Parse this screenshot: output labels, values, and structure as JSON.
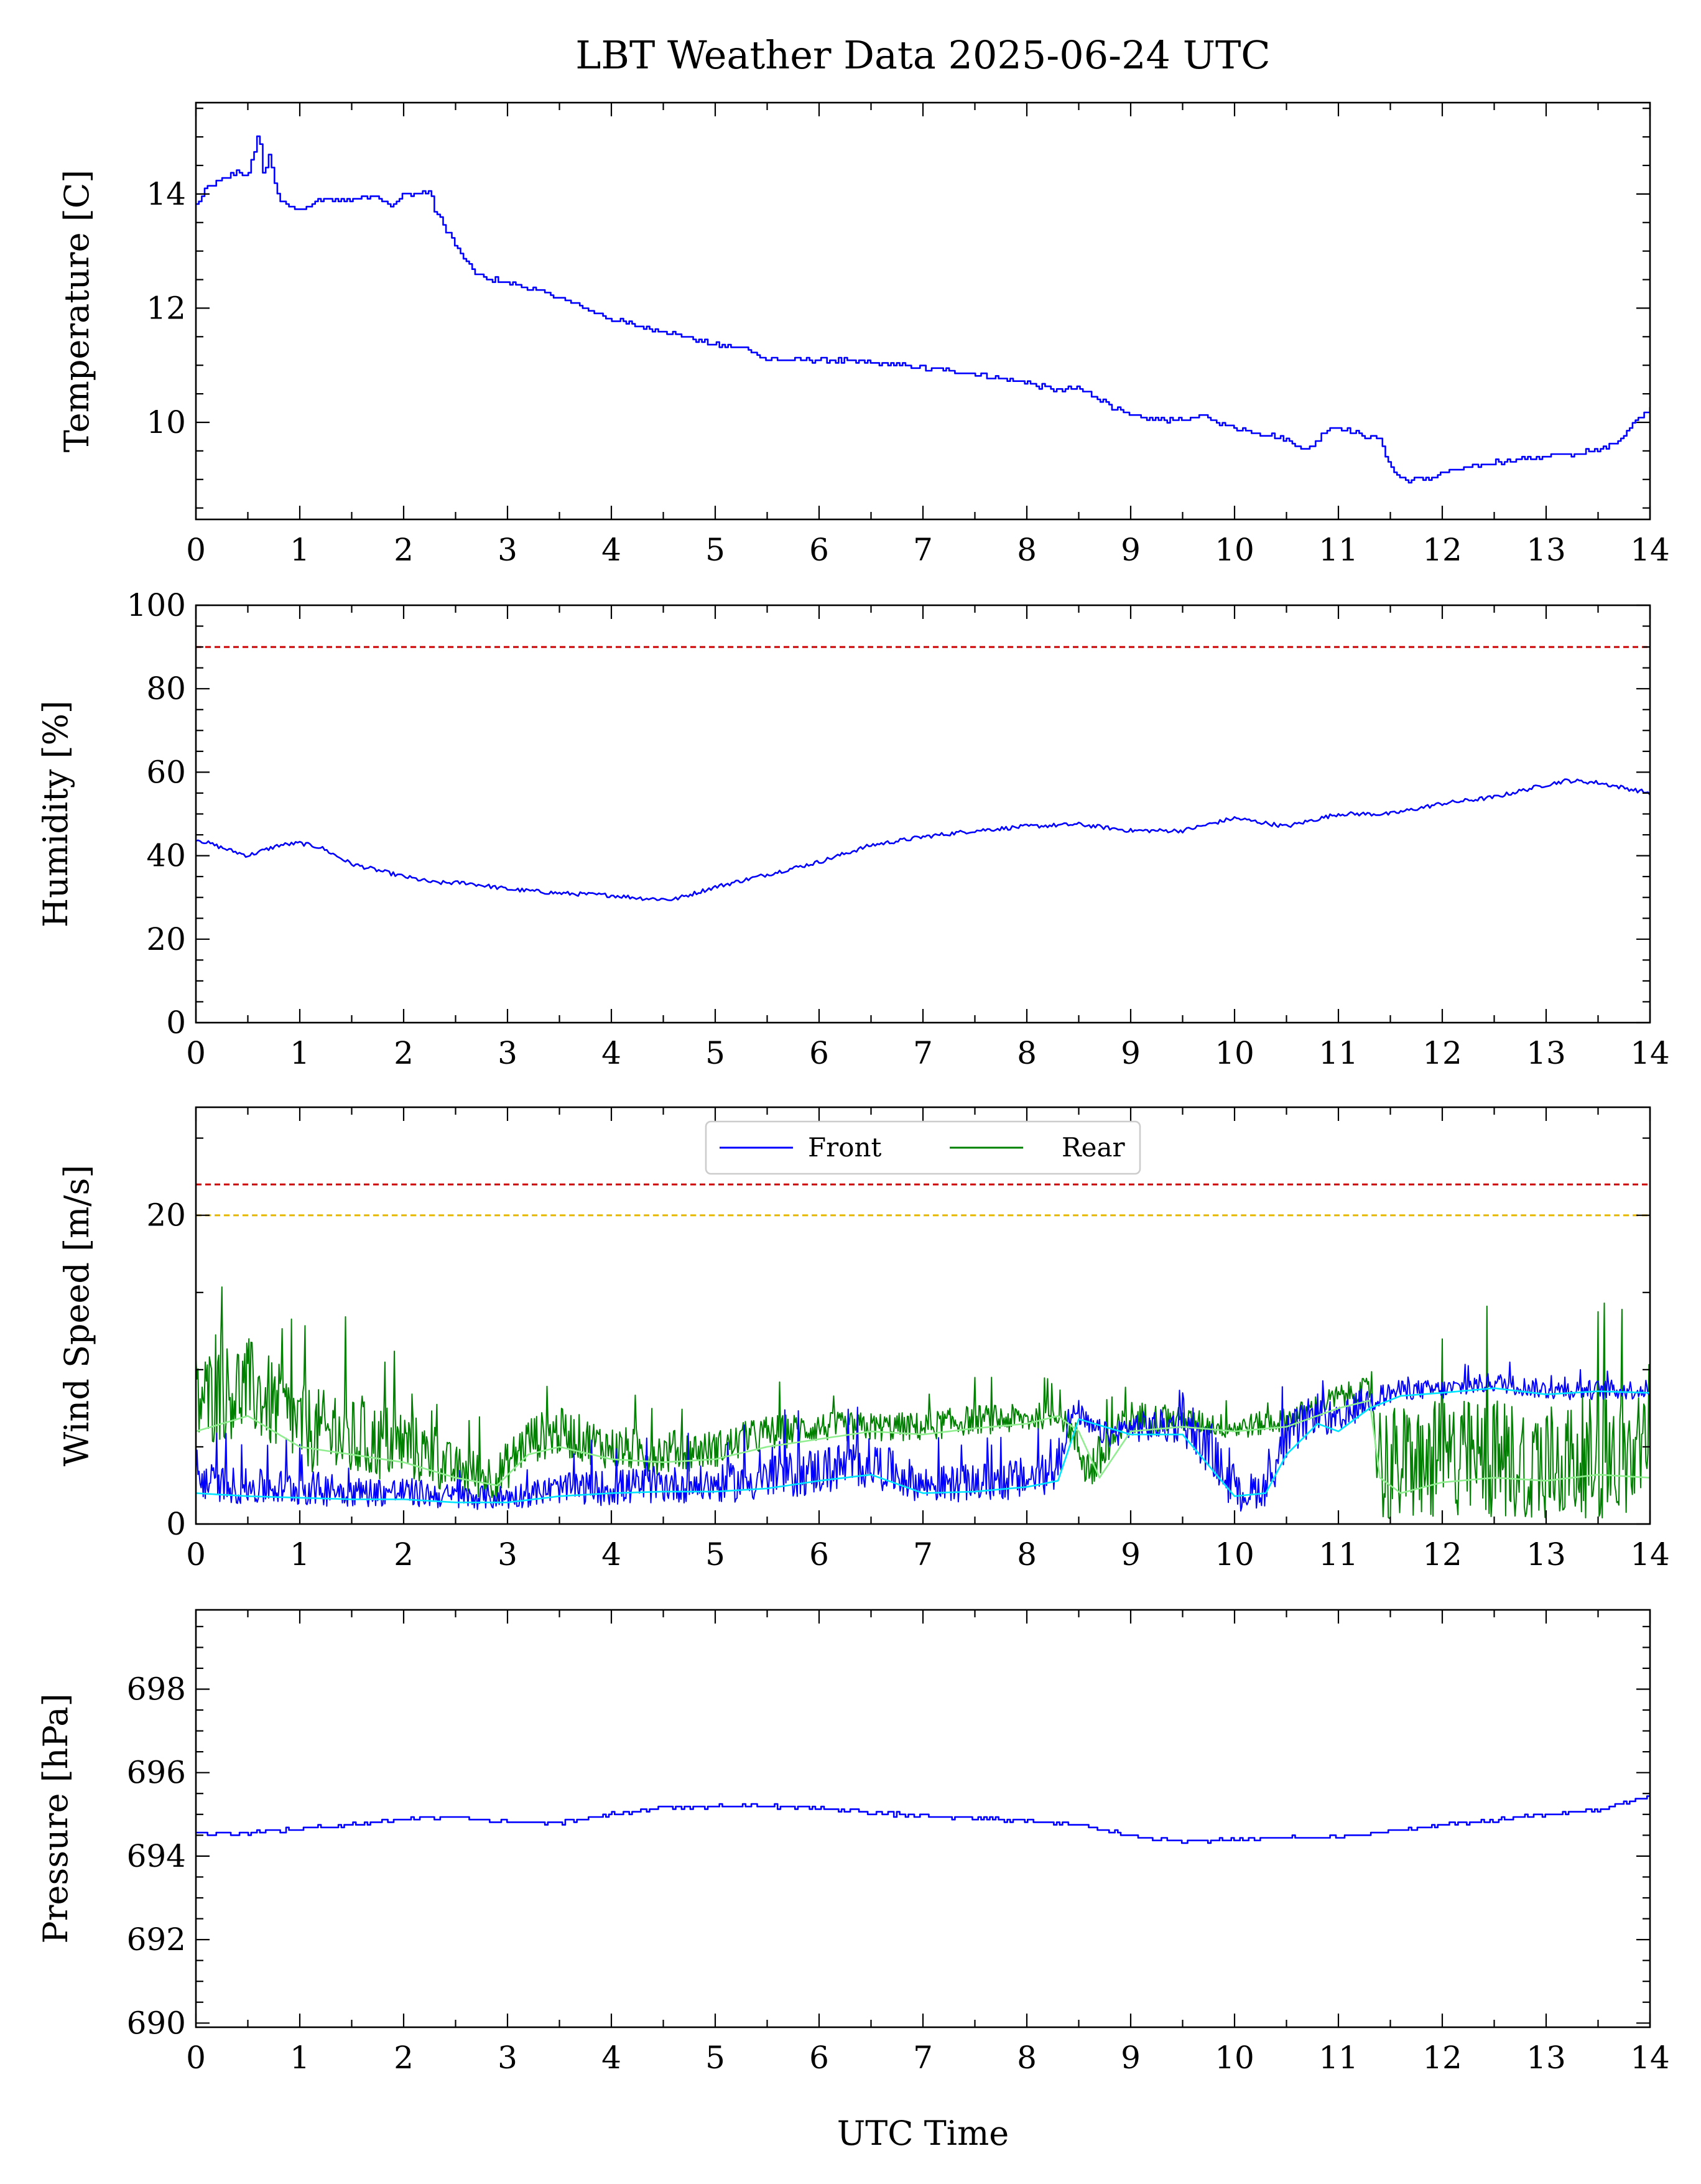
{
  "title": "LBT Weather Data 2025-06-24 UTC",
  "xlabel": "UTC Time",
  "colors": {
    "primary": "#0000ff",
    "rear": "#008000",
    "front_avg": "#00e5ff",
    "rear_avg": "#90ee90",
    "limit_red": "#cc0000",
    "limit_orange": "#e6b800"
  },
  "legend": {
    "placement": "top-center",
    "entries": [
      {
        "label": "Front",
        "color": "#0000ff"
      },
      {
        "label": "Rear",
        "color": "#008000"
      }
    ]
  },
  "chart_data": [
    {
      "type": "line",
      "ylabel": "Temperature [C]",
      "xlim": [
        0,
        14
      ],
      "ylim": [
        8.3,
        15.6
      ],
      "x_ticks": [
        "0",
        "1",
        "2",
        "3",
        "4",
        "5",
        "6",
        "7",
        "8",
        "9",
        "10",
        "11",
        "12",
        "13",
        "14"
      ],
      "y_ticks": [
        "10",
        "12",
        "14"
      ],
      "step": true,
      "noise": 0.04,
      "series": [
        {
          "color": "#0000ff",
          "x": [
            0,
            0.1,
            0.2,
            0.3,
            0.4,
            0.5,
            0.6,
            0.65,
            0.7,
            0.75,
            0.8,
            0.9,
            1.0,
            1.1,
            1.2,
            1.3,
            1.5,
            1.7,
            1.9,
            2.0,
            2.1,
            2.25,
            2.3,
            2.4,
            2.5,
            2.6,
            2.7,
            2.8,
            2.9,
            3.0,
            3.3,
            3.6,
            4.0,
            4.5,
            5.0,
            5.3,
            5.5,
            6.0,
            6.5,
            7.0,
            7.5,
            8.0,
            8.3,
            8.5,
            8.7,
            9.0,
            9.3,
            9.5,
            9.7,
            10.0,
            10.3,
            10.5,
            10.7,
            10.9,
            11.0,
            11.2,
            11.4,
            11.5,
            11.6,
            11.8,
            12.0,
            12.5,
            13.0,
            13.5,
            13.7,
            13.9,
            14.0
          ],
          "y": [
            13.8,
            14.1,
            14.2,
            14.3,
            14.4,
            14.3,
            15.1,
            14.3,
            14.7,
            14.2,
            13.9,
            13.8,
            13.7,
            13.8,
            13.9,
            13.9,
            13.9,
            14.0,
            13.8,
            14.0,
            14.0,
            14.05,
            13.7,
            13.4,
            13.1,
            12.8,
            12.6,
            12.5,
            12.5,
            12.45,
            12.3,
            12.1,
            11.8,
            11.6,
            11.35,
            11.3,
            11.1,
            11.1,
            11.05,
            10.95,
            10.85,
            10.7,
            10.55,
            10.6,
            10.4,
            10.1,
            10.05,
            10.05,
            10.1,
            9.9,
            9.8,
            9.7,
            9.5,
            9.9,
            9.9,
            9.8,
            9.7,
            9.2,
            9.0,
            9.0,
            9.1,
            9.3,
            9.4,
            9.5,
            9.7,
            10.1,
            10.25
          ]
        }
      ]
    },
    {
      "type": "line",
      "ylabel": "Humidity [%]",
      "xlim": [
        0,
        14
      ],
      "ylim": [
        0,
        100
      ],
      "x_ticks": [
        "0",
        "1",
        "2",
        "3",
        "4",
        "5",
        "6",
        "7",
        "8",
        "9",
        "10",
        "11",
        "12",
        "13",
        "14"
      ],
      "y_ticks": [
        "0",
        "20",
        "40",
        "60",
        "80",
        "100"
      ],
      "noise": 0.5,
      "limit_lines": [
        {
          "value": 90,
          "color": "#cc0000"
        }
      ],
      "series": [
        {
          "color": "#0000ff",
          "x": [
            0,
            0.3,
            0.5,
            0.8,
            1.0,
            1.2,
            1.5,
            2.0,
            2.3,
            2.6,
            3.0,
            3.5,
            4.0,
            4.3,
            4.6,
            5.0,
            5.5,
            6.0,
            6.5,
            7.0,
            7.5,
            8.0,
            8.5,
            9.0,
            9.5,
            10.0,
            10.5,
            11.0,
            11.5,
            12.0,
            12.5,
            13.0,
            13.2,
            13.5,
            13.8,
            14.0
          ],
          "y": [
            44,
            41.5,
            40,
            42.5,
            43,
            42,
            38,
            35,
            33.5,
            33.5,
            32,
            31,
            30.5,
            29.8,
            29.5,
            32.5,
            35.5,
            38.5,
            42.5,
            44.5,
            46,
            47,
            47.5,
            46,
            46,
            49,
            47,
            50,
            50,
            52.5,
            54,
            57,
            58,
            57.5,
            56,
            55
          ]
        }
      ]
    },
    {
      "type": "line",
      "ylabel": "Wind Speed [m/s]",
      "xlim": [
        0,
        14
      ],
      "ylim": [
        0,
        27
      ],
      "x_ticks": [
        "0",
        "1",
        "2",
        "3",
        "4",
        "5",
        "6",
        "7",
        "8",
        "9",
        "10",
        "11",
        "12",
        "13",
        "14"
      ],
      "y_ticks": [
        "0",
        "20"
      ],
      "limit_lines": [
        {
          "value": 22,
          "color": "#cc0000"
        },
        {
          "value": 20,
          "color": "#e6b800"
        }
      ],
      "series": [
        {
          "name": "Rear",
          "color": "#008000",
          "noisy": true,
          "x": [
            0,
            0.5,
            1.0,
            1.5,
            2.0,
            2.5,
            2.9,
            3.2,
            3.5,
            4.0,
            4.5,
            5.0,
            5.5,
            6.0,
            6.5,
            7.0,
            7.5,
            8.0,
            8.3,
            8.4,
            8.5,
            8.6,
            8.8,
            9.0,
            9.5,
            10.0,
            10.5,
            11.0,
            11.3,
            11.4,
            11.5,
            12.0,
            12.5,
            13.0,
            13.5,
            14.0
          ],
          "y": [
            7,
            8,
            5.5,
            4.5,
            4.5,
            3,
            2.5,
            5,
            5.5,
            4.5,
            4.2,
            4.5,
            5.5,
            6,
            6,
            6,
            6.5,
            6.5,
            7,
            6,
            4.5,
            3,
            4.5,
            6.5,
            6.5,
            6,
            6.5,
            8,
            8.5,
            3,
            2.5,
            2.8,
            3,
            2.8,
            3,
            3
          ],
          "amp": [
            4,
            4,
            3.5,
            3.5,
            3,
            2,
            2,
            2,
            2,
            1.8,
            1.8,
            1.5,
            1.5,
            1.2,
            1.2,
            1.2,
            1.2,
            1.2,
            1,
            1,
            2,
            2,
            2,
            1.5,
            1,
            1,
            1,
            1,
            1,
            5,
            5,
            5,
            5,
            5,
            5,
            5
          ]
        },
        {
          "name": "Front",
          "color": "#0000ff",
          "noisy": true,
          "x": [
            0,
            0.5,
            1.0,
            1.5,
            2.0,
            2.5,
            3.0,
            3.5,
            4.0,
            4.5,
            5.0,
            5.5,
            6.0,
            6.5,
            7.0,
            7.5,
            8.0,
            8.3,
            8.4,
            8.5,
            8.6,
            8.8,
            9.0,
            9.5,
            9.8,
            10.0,
            10.3,
            10.5,
            10.8,
            11.0,
            11.2,
            11.4,
            11.6,
            12.0,
            12.5,
            13.0,
            13.5,
            14.0
          ],
          "y": [
            2.5,
            2,
            2,
            1.8,
            1.8,
            1.5,
            1.5,
            2,
            2,
            2.2,
            2.2,
            2.5,
            3,
            3.5,
            2.2,
            2.3,
            2.5,
            3,
            6.5,
            7,
            6,
            5.5,
            6,
            6,
            4,
            1.5,
            2,
            5,
            7,
            6,
            7.5,
            8,
            8.5,
            8.5,
            9,
            8.5,
            8.5,
            8.5
          ],
          "amp": [
            1.5,
            1.5,
            1.5,
            1.2,
            1.2,
            1,
            1,
            1.2,
            1.5,
            1.5,
            1.5,
            1.8,
            2,
            2,
            1.5,
            1.5,
            1.8,
            1.5,
            1,
            1,
            1,
            1,
            1.2,
            1.5,
            2,
            1.5,
            1.5,
            2,
            1.5,
            1.5,
            1.2,
            1,
            0.8,
            0.8,
            0.8,
            0.8,
            0.8,
            0.8
          ]
        },
        {
          "color": "#90ee90",
          "x": [
            0,
            0.5,
            1.0,
            1.5,
            2.0,
            2.5,
            2.9,
            3.2,
            3.5,
            4.0,
            4.5,
            5.0,
            5.5,
            6.0,
            6.5,
            7.0,
            7.5,
            8.0,
            8.3,
            8.5,
            8.7,
            9.0,
            9.5,
            10.0,
            10.5,
            11.0,
            11.3,
            11.4,
            11.6,
            12.0,
            12.5,
            13.0,
            13.5,
            14.0
          ],
          "y": [
            6,
            7,
            5,
            4.5,
            4,
            3,
            2.5,
            4.5,
            5,
            4.2,
            4,
            4.2,
            5,
            5.5,
            6,
            5.8,
            6.2,
            6.5,
            7,
            6,
            3,
            6,
            6.3,
            6,
            6.3,
            7.5,
            8,
            3,
            2,
            2.7,
            3,
            2.8,
            3.2,
            3
          ]
        },
        {
          "color": "#00e5ff",
          "x": [
            0,
            0.5,
            1.0,
            1.5,
            2.0,
            2.5,
            3.0,
            3.5,
            4.0,
            4.5,
            5.0,
            5.5,
            6.0,
            6.5,
            7.0,
            7.5,
            8.0,
            8.3,
            8.5,
            9.0,
            9.5,
            10.0,
            10.3,
            10.5,
            10.8,
            11.0,
            11.3,
            11.6,
            12.0,
            12.5,
            13.0,
            13.5,
            14.0
          ],
          "y": [
            2,
            1.8,
            1.7,
            1.6,
            1.6,
            1.4,
            1.4,
            1.8,
            2,
            2.1,
            2.1,
            2.3,
            2.8,
            3.2,
            2,
            2.1,
            2.4,
            2.8,
            6.8,
            5.8,
            5.8,
            1.8,
            2,
            4.5,
            6.5,
            6,
            7.5,
            8.3,
            8.5,
            8.8,
            8.4,
            8.6,
            8.5
          ]
        }
      ]
    },
    {
      "type": "line",
      "ylabel": "Pressure [hPa]",
      "xlim": [
        0,
        14
      ],
      "ylim": [
        689.9,
        699.9
      ],
      "x_ticks": [
        "0",
        "1",
        "2",
        "3",
        "4",
        "5",
        "6",
        "7",
        "8",
        "9",
        "10",
        "11",
        "12",
        "13",
        "14"
      ],
      "y_ticks": [
        "690",
        "692",
        "694",
        "696",
        "698"
      ],
      "step": true,
      "noise": 0.04,
      "series": [
        {
          "color": "#0000ff",
          "x": [
            0,
            0.5,
            1.0,
            1.5,
            2.0,
            2.5,
            3.0,
            3.5,
            4.0,
            4.5,
            5.0,
            5.5,
            6.0,
            6.5,
            7.0,
            7.5,
            8.0,
            8.5,
            9.0,
            9.5,
            10.0,
            10.5,
            11.0,
            11.5,
            12.0,
            12.5,
            13.0,
            13.5,
            14.0
          ],
          "y": [
            694.55,
            694.55,
            694.65,
            694.75,
            694.9,
            694.95,
            694.8,
            694.8,
            695.0,
            695.15,
            695.2,
            695.2,
            695.15,
            695.05,
            694.95,
            694.9,
            694.85,
            694.75,
            694.5,
            694.35,
            694.4,
            694.45,
            694.45,
            694.6,
            694.75,
            694.85,
            695.0,
            695.1,
            695.45
          ]
        }
      ]
    }
  ]
}
